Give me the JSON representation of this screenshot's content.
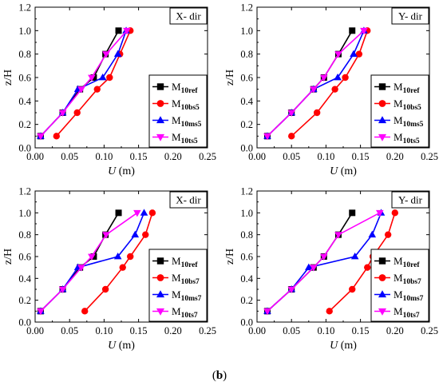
{
  "caption": {
    "open": "(",
    "letter": "b",
    "close": ")"
  },
  "chart_data": [
    {
      "type": "line",
      "title": "",
      "annotation": "X- dir",
      "xlabel": {
        "main": "U",
        "unit": " (m)"
      },
      "ylabel": "z/H",
      "xlim": [
        0,
        0.25
      ],
      "ylim": [
        0,
        1.2
      ],
      "xticks": [
        "0.00",
        "0.05",
        "0.10",
        "0.15",
        "0.20",
        "0.25"
      ],
      "yticks": [
        "0.0",
        "0.2",
        "0.4",
        "0.6",
        "0.8",
        "1.0",
        "1.2"
      ],
      "legend_position": "right",
      "series": [
        {
          "name": {
            "base": "M",
            "sub": "10ref"
          },
          "color": "#000000",
          "marker": "square",
          "points": [
            [
              0.008,
              0.1
            ],
            [
              0.04,
              0.3
            ],
            [
              0.065,
              0.5
            ],
            [
              0.085,
              0.6
            ],
            [
              0.102,
              0.8
            ],
            [
              0.121,
              1.0
            ]
          ]
        },
        {
          "name": {
            "base": "M",
            "sub": "10bs5"
          },
          "color": "#ff0000",
          "marker": "circle",
          "points": [
            [
              0.031,
              0.1
            ],
            [
              0.061,
              0.3
            ],
            [
              0.09,
              0.5
            ],
            [
              0.108,
              0.6
            ],
            [
              0.123,
              0.8
            ],
            [
              0.138,
              1.0
            ]
          ]
        },
        {
          "name": {
            "base": "M",
            "sub": "10ms5"
          },
          "color": "#0000ff",
          "marker": "triangle-up",
          "points": [
            [
              0.008,
              0.1
            ],
            [
              0.04,
              0.3
            ],
            [
              0.062,
              0.5
            ],
            [
              0.098,
              0.6
            ],
            [
              0.12,
              0.8
            ],
            [
              0.132,
              1.0
            ]
          ]
        },
        {
          "name": {
            "base": "M",
            "sub": "10ts5"
          },
          "color": "#ff00ff",
          "marker": "triangle-down",
          "points": [
            [
              0.008,
              0.1
            ],
            [
              0.04,
              0.3
            ],
            [
              0.067,
              0.5
            ],
            [
              0.082,
              0.6
            ],
            [
              0.103,
              0.8
            ],
            [
              0.133,
              1.0
            ]
          ]
        }
      ]
    },
    {
      "type": "line",
      "title": "",
      "annotation": "Y- dir",
      "xlabel": {
        "main": "U",
        "unit": " (m)"
      },
      "ylabel": "z/H",
      "xlim": [
        0,
        0.25
      ],
      "ylim": [
        0,
        1.2
      ],
      "xticks": [
        "0.00",
        "0.05",
        "0.10",
        "0.15",
        "0.20",
        "0.25"
      ],
      "yticks": [
        "0.0",
        "0.2",
        "0.4",
        "0.6",
        "0.8",
        "1.0",
        "1.2"
      ],
      "legend_position": "right",
      "series": [
        {
          "name": {
            "base": "M",
            "sub": "10ref"
          },
          "color": "#000000",
          "marker": "square",
          "points": [
            [
              0.015,
              0.1
            ],
            [
              0.05,
              0.3
            ],
            [
              0.082,
              0.5
            ],
            [
              0.097,
              0.6
            ],
            [
              0.118,
              0.8
            ],
            [
              0.138,
              1.0
            ]
          ]
        },
        {
          "name": {
            "base": "M",
            "sub": "10bs5"
          },
          "color": "#ff0000",
          "marker": "circle",
          "points": [
            [
              0.05,
              0.1
            ],
            [
              0.087,
              0.3
            ],
            [
              0.113,
              0.5
            ],
            [
              0.128,
              0.6
            ],
            [
              0.148,
              0.8
            ],
            [
              0.16,
              1.0
            ]
          ]
        },
        {
          "name": {
            "base": "M",
            "sub": "10ms5"
          },
          "color": "#0000ff",
          "marker": "triangle-up",
          "points": [
            [
              0.015,
              0.1
            ],
            [
              0.05,
              0.3
            ],
            [
              0.082,
              0.5
            ],
            [
              0.117,
              0.6
            ],
            [
              0.14,
              0.8
            ],
            [
              0.155,
              1.0
            ]
          ]
        },
        {
          "name": {
            "base": "M",
            "sub": "10ts5"
          },
          "color": "#ff00ff",
          "marker": "triangle-down",
          "points": [
            [
              0.015,
              0.1
            ],
            [
              0.05,
              0.3
            ],
            [
              0.082,
              0.5
            ],
            [
              0.097,
              0.6
            ],
            [
              0.118,
              0.8
            ],
            [
              0.155,
              1.0
            ]
          ]
        }
      ]
    },
    {
      "type": "line",
      "title": "",
      "annotation": "X- dir",
      "xlabel": {
        "main": "U",
        "unit": " (m)"
      },
      "ylabel": "z/H",
      "xlim": [
        0,
        0.25
      ],
      "ylim": [
        0,
        1.2
      ],
      "xticks": [
        "0.00",
        "0.05",
        "0.10",
        "0.15",
        "0.20",
        "0.25"
      ],
      "yticks": [
        "0.0",
        "0.2",
        "0.4",
        "0.6",
        "0.8",
        "1.0",
        "1.2"
      ],
      "legend_position": "right",
      "series": [
        {
          "name": {
            "base": "M",
            "sub": "10ref"
          },
          "color": "#000000",
          "marker": "square",
          "points": [
            [
              0.008,
              0.1
            ],
            [
              0.04,
              0.3
            ],
            [
              0.065,
              0.5
            ],
            [
              0.085,
              0.6
            ],
            [
              0.102,
              0.8
            ],
            [
              0.121,
              1.0
            ]
          ]
        },
        {
          "name": {
            "base": "M",
            "sub": "10bs7"
          },
          "color": "#ff0000",
          "marker": "circle",
          "points": [
            [
              0.072,
              0.1
            ],
            [
              0.102,
              0.3
            ],
            [
              0.127,
              0.5
            ],
            [
              0.138,
              0.6
            ],
            [
              0.16,
              0.8
            ],
            [
              0.17,
              1.0
            ]
          ]
        },
        {
          "name": {
            "base": "M",
            "sub": "10ms7"
          },
          "color": "#0000ff",
          "marker": "triangle-up",
          "points": [
            [
              0.008,
              0.1
            ],
            [
              0.04,
              0.3
            ],
            [
              0.062,
              0.5
            ],
            [
              0.12,
              0.6
            ],
            [
              0.145,
              0.8
            ],
            [
              0.158,
              1.0
            ]
          ]
        },
        {
          "name": {
            "base": "M",
            "sub": "10ts7"
          },
          "color": "#ff00ff",
          "marker": "triangle-down",
          "points": [
            [
              0.008,
              0.1
            ],
            [
              0.04,
              0.3
            ],
            [
              0.067,
              0.5
            ],
            [
              0.082,
              0.6
            ],
            [
              0.103,
              0.8
            ],
            [
              0.148,
              1.0
            ]
          ]
        }
      ]
    },
    {
      "type": "line",
      "title": "",
      "annotation": "Y- dir",
      "xlabel": {
        "main": "U",
        "unit": " (m)"
      },
      "ylabel": "z/H",
      "xlim": [
        0,
        0.25
      ],
      "ylim": [
        0,
        1.2
      ],
      "xticks": [
        "0.00",
        "0.05",
        "0.10",
        "0.15",
        "0.20",
        "0.25"
      ],
      "yticks": [
        "0.0",
        "0.2",
        "0.4",
        "0.6",
        "0.8",
        "1.0",
        "1.2"
      ],
      "legend_position": "right",
      "series": [
        {
          "name": {
            "base": "M",
            "sub": "10ref"
          },
          "color": "#000000",
          "marker": "square",
          "points": [
            [
              0.015,
              0.1
            ],
            [
              0.05,
              0.3
            ],
            [
              0.082,
              0.5
            ],
            [
              0.097,
              0.6
            ],
            [
              0.118,
              0.8
            ],
            [
              0.138,
              1.0
            ]
          ]
        },
        {
          "name": {
            "base": "M",
            "sub": "10bs7"
          },
          "color": "#ff0000",
          "marker": "circle",
          "points": [
            [
              0.105,
              0.1
            ],
            [
              0.138,
              0.3
            ],
            [
              0.16,
              0.5
            ],
            [
              0.168,
              0.6
            ],
            [
              0.19,
              0.8
            ],
            [
              0.2,
              1.0
            ]
          ]
        },
        {
          "name": {
            "base": "M",
            "sub": "10ms7"
          },
          "color": "#0000ff",
          "marker": "triangle-up",
          "points": [
            [
              0.015,
              0.1
            ],
            [
              0.05,
              0.3
            ],
            [
              0.075,
              0.5
            ],
            [
              0.142,
              0.6
            ],
            [
              0.167,
              0.8
            ],
            [
              0.18,
              1.0
            ]
          ]
        },
        {
          "name": {
            "base": "M",
            "sub": "10ts7"
          },
          "color": "#ff00ff",
          "marker": "triangle-down",
          "points": [
            [
              0.015,
              0.1
            ],
            [
              0.05,
              0.3
            ],
            [
              0.082,
              0.5
            ],
            [
              0.097,
              0.6
            ],
            [
              0.118,
              0.8
            ],
            [
              0.178,
              1.0
            ]
          ]
        }
      ]
    }
  ]
}
